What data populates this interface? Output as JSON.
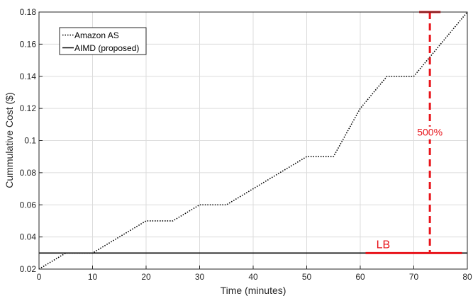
{
  "chart_data": {
    "type": "line",
    "xlabel": "Time (minutes)",
    "ylabel": "Cummulative Cost ($)",
    "xlim": [
      0,
      80
    ],
    "ylim": [
      0.02,
      0.18
    ],
    "xticks": [
      "0",
      "10",
      "20",
      "30",
      "40",
      "50",
      "60",
      "70",
      "80"
    ],
    "yticks": [
      "0.02",
      "0.04",
      "0.06",
      "0.08",
      "0.1",
      "0.12",
      "0.14",
      "0.16",
      "0.18"
    ],
    "grid": true,
    "legend_position": "top-left",
    "series": [
      {
        "name": "Amazon AS",
        "style": "dotted",
        "color": "#000000",
        "points": [
          [
            0,
            0.02
          ],
          [
            5,
            0.03
          ],
          [
            10,
            0.03
          ],
          [
            20,
            0.05
          ],
          [
            25,
            0.05
          ],
          [
            30,
            0.06
          ],
          [
            35,
            0.06
          ],
          [
            50,
            0.09
          ],
          [
            55,
            0.09
          ],
          [
            60,
            0.12
          ],
          [
            65,
            0.14
          ],
          [
            70,
            0.14
          ],
          [
            80,
            0.18
          ]
        ]
      },
      {
        "name": "AIMD (proposed)",
        "style": "solid",
        "color": "#000000",
        "points": [
          [
            0,
            0.03
          ],
          [
            80,
            0.03
          ]
        ]
      }
    ],
    "annotations": {
      "lb_label": "LB",
      "pct_label": "500%",
      "color": "#e8141b",
      "lb_segment": {
        "x1": 61,
        "x2": 79,
        "y": 0.03
      },
      "bracket": {
        "x": 73,
        "y_low": 0.03,
        "y_high": 0.18,
        "cap_x1": 71,
        "cap_x2": 75
      },
      "pct_label_pos": {
        "x": 73,
        "y": 0.103
      },
      "lb_label_pos": {
        "x": 63,
        "y": 0.033
      }
    }
  }
}
